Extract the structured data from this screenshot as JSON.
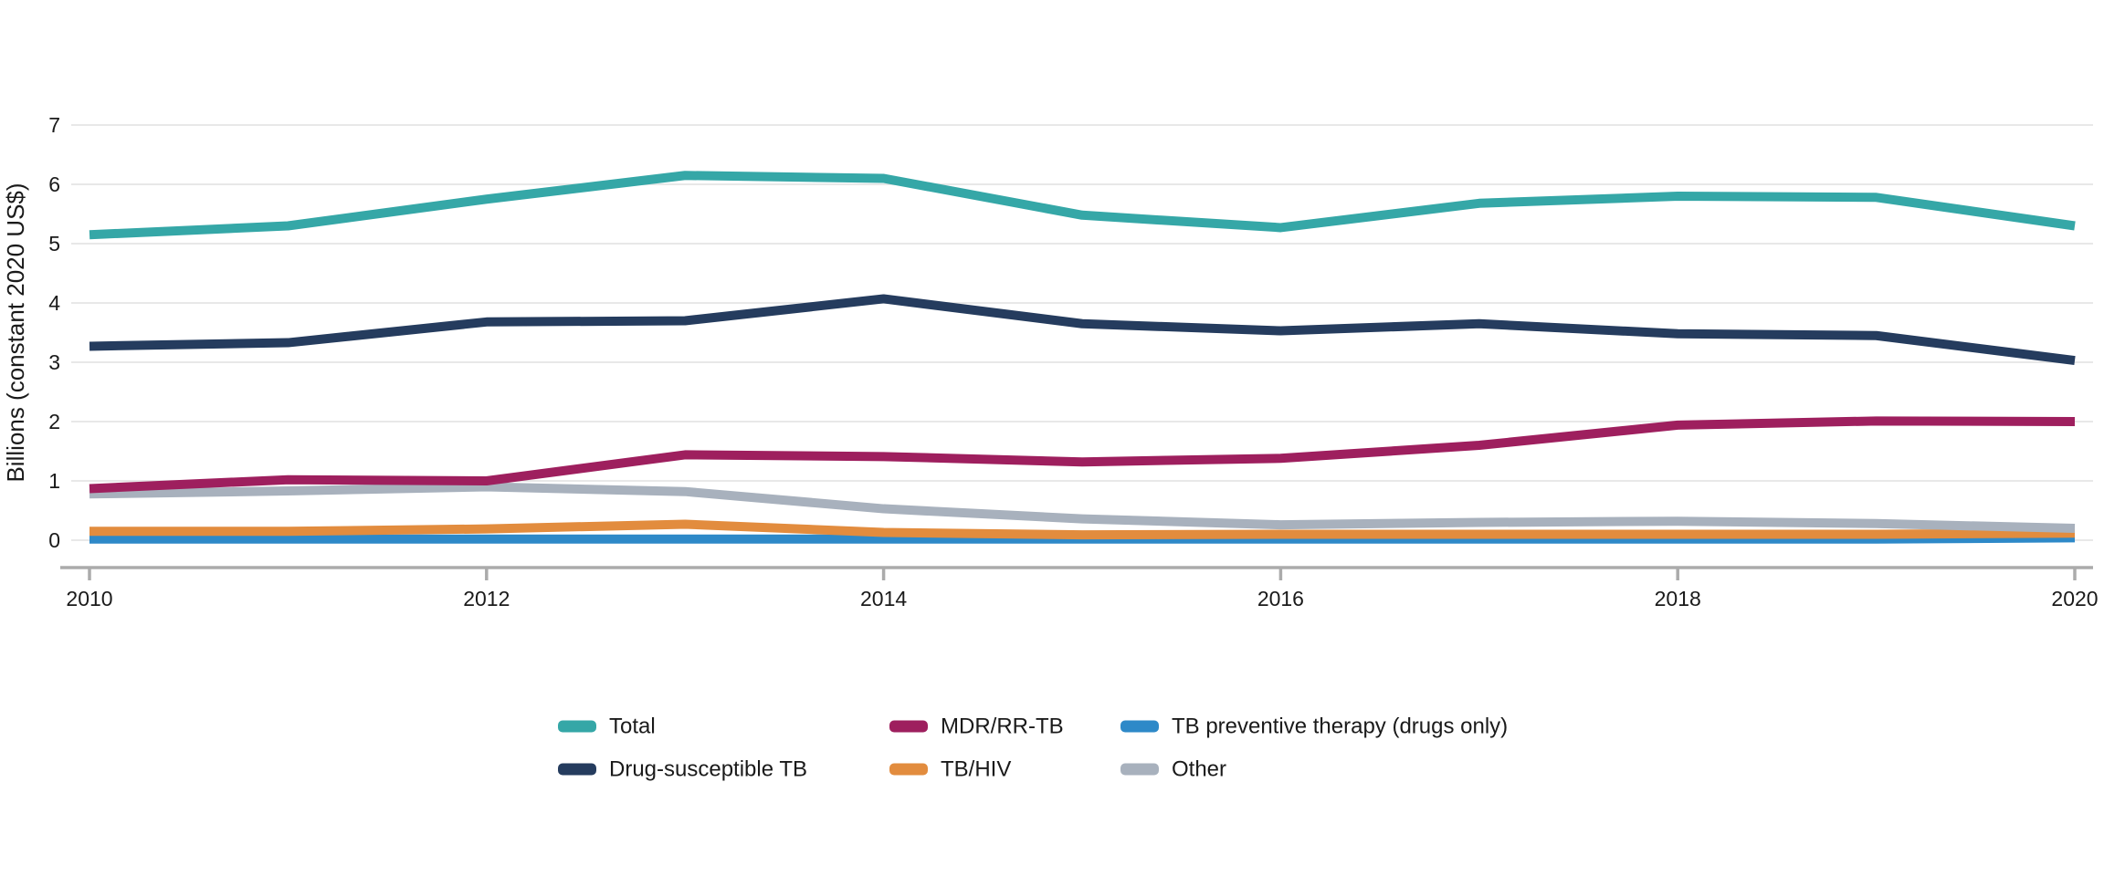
{
  "figure": {
    "background": "#FFFFFF",
    "text_color": "#1A1A1A",
    "gridline_color": "#E8E8E8",
    "axis_line_color": "#ABABAB"
  },
  "chart_data": {
    "type": "line",
    "title": "",
    "xlabel": "",
    "ylabel": "Billions (constant 2020 US$)",
    "x": [
      2010,
      2011,
      2012,
      2013,
      2014,
      2015,
      2016,
      2017,
      2018,
      2019,
      2020
    ],
    "xticks": [
      2010,
      2012,
      2014,
      2016,
      2018,
      2020
    ],
    "yticks": [
      0,
      1,
      2,
      3,
      4,
      5,
      6,
      7
    ],
    "ylim": [
      0,
      7
    ],
    "grid": "horizontal",
    "legend_position": "bottom",
    "series": [
      {
        "name": "Total",
        "color": "#35A7A7",
        "values": [
          5.15,
          5.3,
          5.75,
          6.15,
          6.1,
          5.48,
          5.27,
          5.68,
          5.8,
          5.78,
          5.3
        ]
      },
      {
        "name": "Drug-susceptible TB",
        "color": "#253C5E",
        "values": [
          3.27,
          3.33,
          3.68,
          3.7,
          4.07,
          3.65,
          3.53,
          3.65,
          3.48,
          3.45,
          3.03
        ]
      },
      {
        "name": "MDR/RR-TB",
        "color": "#9E1F5E",
        "values": [
          0.87,
          1.02,
          1.0,
          1.44,
          1.41,
          1.32,
          1.38,
          1.6,
          1.94,
          2.01,
          2.0
        ]
      },
      {
        "name": "TB/HIV",
        "color": "#E28C3E",
        "values": [
          0.15,
          0.15,
          0.19,
          0.27,
          0.13,
          0.09,
          0.1,
          0.1,
          0.1,
          0.1,
          0.12
        ]
      },
      {
        "name": "TB preventive therapy (drugs only)",
        "color": "#2E89C8",
        "values": [
          0.02,
          0.02,
          0.02,
          0.02,
          0.02,
          0.02,
          0.02,
          0.02,
          0.02,
          0.02,
          0.04
        ]
      },
      {
        "name": "Other",
        "color": "#A8B1BD",
        "values": [
          0.78,
          0.83,
          0.9,
          0.82,
          0.53,
          0.36,
          0.26,
          0.3,
          0.32,
          0.28,
          0.2
        ]
      }
    ],
    "draw_order": [
      "TB preventive therapy (drugs only)",
      "TB/HIV",
      "Other",
      "MDR/RR-TB",
      "Drug-susceptible TB",
      "Total"
    ],
    "legend_columns": [
      [
        "Total",
        "Drug-susceptible TB"
      ],
      [
        "MDR/RR-TB",
        "TB/HIV"
      ],
      [
        "TB preventive therapy (drugs only)",
        "Other"
      ]
    ]
  }
}
